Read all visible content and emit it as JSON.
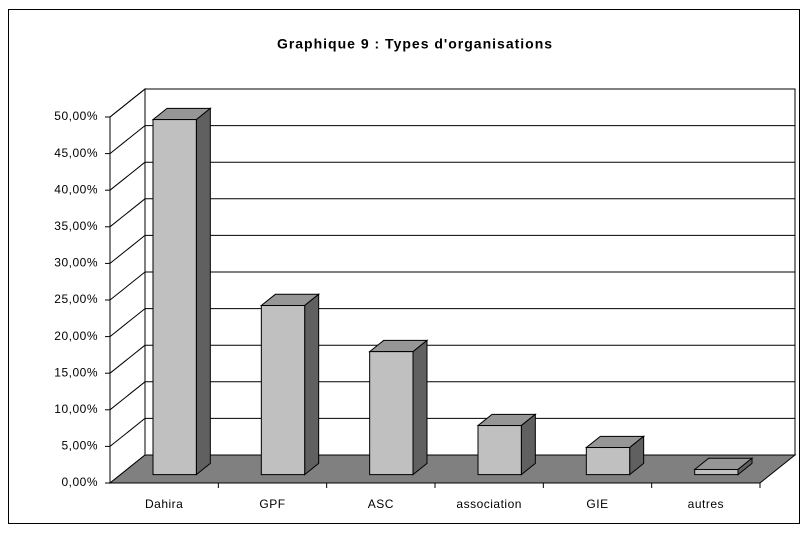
{
  "chart_data": {
    "type": "bar3d",
    "title": "Graphique 9 : Types d'organisations",
    "categories": [
      "Dahira",
      "GPF",
      "ASC",
      "association",
      "GIE",
      "autres"
    ],
    "values": [
      48.5,
      23.1,
      16.8,
      6.7,
      3.7,
      0.7
    ],
    "color": "#c0c0c0",
    "ylim": [
      0,
      50
    ],
    "yticks": [
      {
        "value": 0,
        "label": "0,00%"
      },
      {
        "value": 5,
        "label": "5,00%"
      },
      {
        "value": 10,
        "label": "10,00%"
      },
      {
        "value": 15,
        "label": "15,00%"
      },
      {
        "value": 20,
        "label": "20,00%"
      },
      {
        "value": 25,
        "label": "25,00%"
      },
      {
        "value": 30,
        "label": "30,00%"
      },
      {
        "value": 35,
        "label": "35,00%"
      },
      {
        "value": 40,
        "label": "40,00%"
      },
      {
        "value": 45,
        "label": "45,00%"
      },
      {
        "value": 50,
        "label": "50,00%"
      }
    ],
    "grid": true
  }
}
